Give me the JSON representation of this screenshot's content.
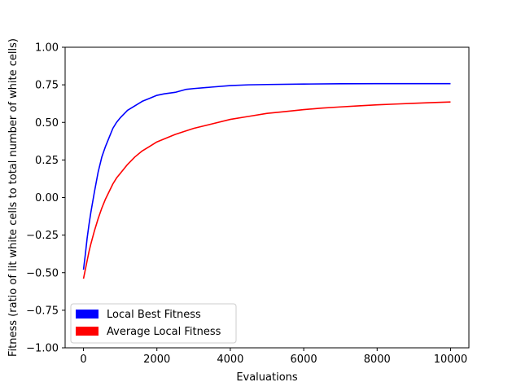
{
  "chart_data": {
    "type": "line",
    "xlabel": "Evaluations",
    "ylabel": "Fitness (ratio of lit white cells to total number of white cells)",
    "xlim": [
      -500,
      10500
    ],
    "ylim": [
      -1.0,
      1.0
    ],
    "xticks": [
      0,
      2000,
      4000,
      6000,
      8000,
      10000
    ],
    "xtick_labels": [
      "0",
      "2000",
      "4000",
      "6000",
      "8000",
      "10000"
    ],
    "yticks": [
      -1.0,
      -0.75,
      -0.5,
      -0.25,
      0.0,
      0.25,
      0.5,
      0.75,
      1.0
    ],
    "ytick_labels": [
      "−1.00",
      "−0.75",
      "−0.50",
      "−0.25",
      "0.00",
      "0.25",
      "0.50",
      "0.75",
      "1.00"
    ],
    "grid": false,
    "legend_position": "lower-left",
    "series": [
      {
        "name": "Local Best Fitness",
        "color": "#0000ff",
        "points": [
          [
            0,
            -0.48
          ],
          [
            50,
            -0.38
          ],
          [
            100,
            -0.27
          ],
          [
            150,
            -0.18
          ],
          [
            200,
            -0.1
          ],
          [
            300,
            0.04
          ],
          [
            400,
            0.17
          ],
          [
            500,
            0.27
          ],
          [
            600,
            0.34
          ],
          [
            700,
            0.4
          ],
          [
            800,
            0.46
          ],
          [
            900,
            0.5
          ],
          [
            1000,
            0.53
          ],
          [
            1200,
            0.58
          ],
          [
            1400,
            0.61
          ],
          [
            1600,
            0.64
          ],
          [
            1800,
            0.66
          ],
          [
            2000,
            0.68
          ],
          [
            2200,
            0.69
          ],
          [
            2500,
            0.7
          ],
          [
            2800,
            0.72
          ],
          [
            3000,
            0.725
          ],
          [
            3500,
            0.735
          ],
          [
            4000,
            0.745
          ],
          [
            4500,
            0.75
          ],
          [
            5000,
            0.752
          ],
          [
            6000,
            0.755
          ],
          [
            7000,
            0.757
          ],
          [
            8000,
            0.758
          ],
          [
            9000,
            0.758
          ],
          [
            10000,
            0.758
          ]
        ]
      },
      {
        "name": "Average Local Fitness",
        "color": "#ff0000",
        "points": [
          [
            0,
            -0.54
          ],
          [
            50,
            -0.48
          ],
          [
            100,
            -0.42
          ],
          [
            150,
            -0.36
          ],
          [
            200,
            -0.31
          ],
          [
            300,
            -0.22
          ],
          [
            400,
            -0.14
          ],
          [
            500,
            -0.07
          ],
          [
            600,
            -0.01
          ],
          [
            700,
            0.04
          ],
          [
            800,
            0.09
          ],
          [
            900,
            0.13
          ],
          [
            1000,
            0.16
          ],
          [
            1200,
            0.22
          ],
          [
            1400,
            0.27
          ],
          [
            1600,
            0.31
          ],
          [
            1800,
            0.34
          ],
          [
            2000,
            0.37
          ],
          [
            2500,
            0.42
          ],
          [
            3000,
            0.46
          ],
          [
            3500,
            0.49
          ],
          [
            4000,
            0.52
          ],
          [
            4500,
            0.54
          ],
          [
            5000,
            0.56
          ],
          [
            5500,
            0.572
          ],
          [
            6000,
            0.585
          ],
          [
            6500,
            0.595
          ],
          [
            7000,
            0.603
          ],
          [
            7500,
            0.61
          ],
          [
            8000,
            0.617
          ],
          [
            8500,
            0.622
          ],
          [
            9000,
            0.627
          ],
          [
            9500,
            0.632
          ],
          [
            10000,
            0.636
          ]
        ]
      }
    ]
  }
}
